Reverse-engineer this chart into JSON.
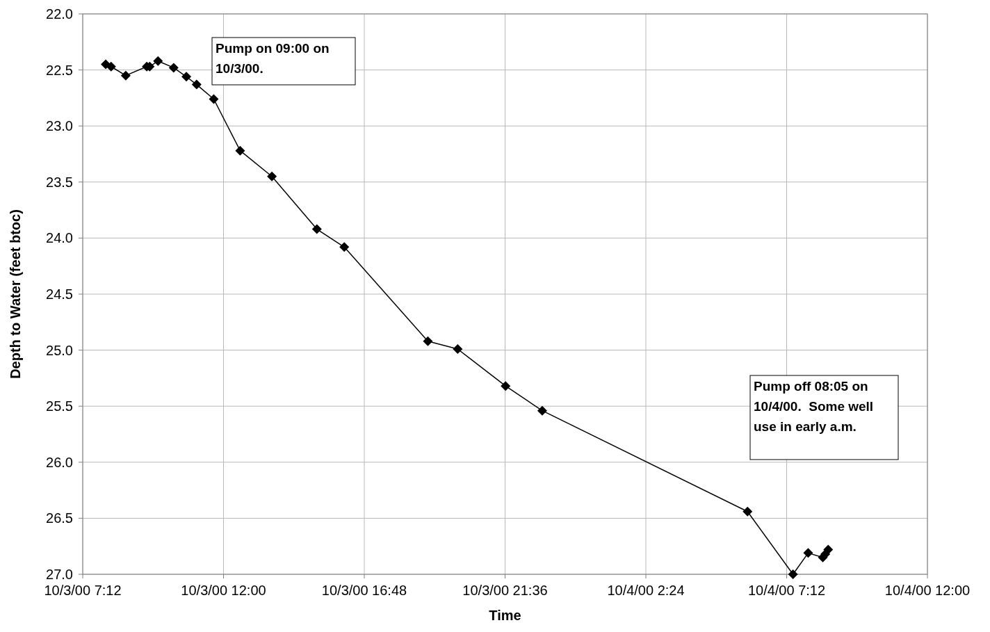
{
  "chart_data": {
    "type": "line",
    "xlabel": "Time",
    "ylabel": "Depth to Water (feet btoc)",
    "x": [
      "2000-10-03T07:59",
      "2000-10-03T08:10",
      "2000-10-03T08:40",
      "2000-10-03T09:23",
      "2000-10-03T09:29",
      "2000-10-03T09:46",
      "2000-10-03T10:18",
      "2000-10-03T10:44",
      "2000-10-03T11:05",
      "2000-10-03T11:40",
      "2000-10-03T12:34",
      "2000-10-03T13:39",
      "2000-10-03T15:11",
      "2000-10-03T16:07",
      "2000-10-03T18:58",
      "2000-10-03T19:59",
      "2000-10-03T21:37",
      "2000-10-03T22:52",
      "2000-10-04T05:52",
      "2000-10-04T07:25",
      "2000-10-04T07:56",
      "2000-10-04T08:26",
      "2000-10-04T08:31",
      "2000-10-04T08:37"
    ],
    "series": [
      {
        "color": "#000000",
        "values": [
          22.45,
          22.47,
          22.55,
          22.47,
          22.47,
          22.42,
          22.48,
          22.56,
          22.63,
          22.76,
          23.22,
          23.45,
          23.92,
          24.08,
          24.92,
          24.99,
          25.32,
          25.54,
          26.44,
          27.0,
          26.81,
          26.85,
          26.82,
          26.78
        ]
      }
    ],
    "xlim": [
      "2000-10-03T07:12",
      "2000-10-04T12:00"
    ],
    "xticks": [
      {
        "value": "2000-10-03T07:12",
        "label": "10/3/00 7:12"
      },
      {
        "value": "2000-10-03T12:00",
        "label": "10/3/00 12:00"
      },
      {
        "value": "2000-10-03T16:48",
        "label": "10/3/00 16:48"
      },
      {
        "value": "2000-10-03T21:36",
        "label": "10/3/00 21:36"
      },
      {
        "value": "2000-10-04T02:24",
        "label": "10/4/00 2:24"
      },
      {
        "value": "2000-10-04T07:12",
        "label": "10/4/00 7:12"
      },
      {
        "value": "2000-10-04T12:00",
        "label": "10/4/00 12:00"
      }
    ],
    "ylim": [
      27.0,
      22.0
    ],
    "yticks": [
      {
        "value": 22.0,
        "label": "22.0"
      },
      {
        "value": 22.5,
        "label": "22.5"
      },
      {
        "value": 23.0,
        "label": "23.0"
      },
      {
        "value": 23.5,
        "label": "23.5"
      },
      {
        "value": 24.0,
        "label": "24.0"
      },
      {
        "value": 24.5,
        "label": "24.5"
      },
      {
        "value": 25.0,
        "label": "25.0"
      },
      {
        "value": 25.5,
        "label": "25.5"
      },
      {
        "value": 26.0,
        "label": "26.0"
      },
      {
        "value": 26.5,
        "label": "26.5"
      },
      {
        "value": 27.0,
        "label": "27.0"
      }
    ],
    "annotations": [
      "Pump on 09:00 on 10/3/00.",
      "Pump off 08:05 on 10/4/00.  Some well use in early a.m."
    ],
    "grid": true,
    "marker": "diamond",
    "line_style": "solid"
  }
}
